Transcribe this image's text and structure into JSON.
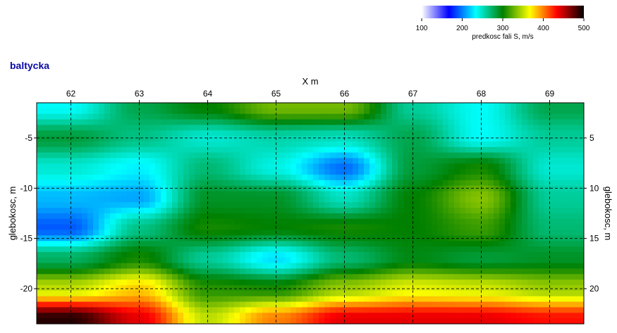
{
  "chart_data": {
    "type": "heatmap",
    "title": "baltycka",
    "xlabel": "X m",
    "ylabel_left": "glebokosc, m",
    "ylabel_right": "glebokosc, m",
    "xlim": [
      61.5,
      69.5
    ],
    "ylim": [
      -23.5,
      -1.5
    ],
    "x_ticks": [
      "62",
      "63",
      "64",
      "65",
      "66",
      "67",
      "68",
      "69"
    ],
    "y_ticks": [
      "-5",
      "-10",
      "-15",
      "-20"
    ],
    "y_ticks_right": [
      "5",
      "10",
      "15",
      "20"
    ],
    "grid": true,
    "colorbar": {
      "label": "predkosc fali S, m/s",
      "ticks": [
        "100",
        "200",
        "300",
        "400",
        "500"
      ],
      "range": [
        100,
        500
      ],
      "colors": [
        "#ffffff",
        "#0000ff",
        "#00ffff",
        "#008000",
        "#ffff00",
        "#ff0000",
        "#000000"
      ]
    },
    "x": [
      62,
      63,
      64,
      65,
      66,
      67,
      68,
      69
    ],
    "y": [
      -2,
      -5,
      -8,
      -11,
      -14,
      -17,
      -20,
      -23
    ],
    "z": [
      [
        235,
        280,
        300,
        330,
        330,
        260,
        235,
        280
      ],
      [
        285,
        265,
        245,
        255,
        250,
        280,
        235,
        260
      ],
      [
        245,
        230,
        270,
        240,
        195,
        285,
        305,
        245
      ],
      [
        215,
        210,
        290,
        290,
        250,
        300,
        335,
        260
      ],
      [
        190,
        265,
        305,
        300,
        305,
        300,
        315,
        270
      ],
      [
        275,
        305,
        260,
        225,
        270,
        295,
        285,
        290
      ],
      [
        350,
        380,
        310,
        305,
        340,
        360,
        355,
        340
      ],
      [
        490,
        440,
        350,
        400,
        440,
        440,
        440,
        430
      ]
    ]
  }
}
